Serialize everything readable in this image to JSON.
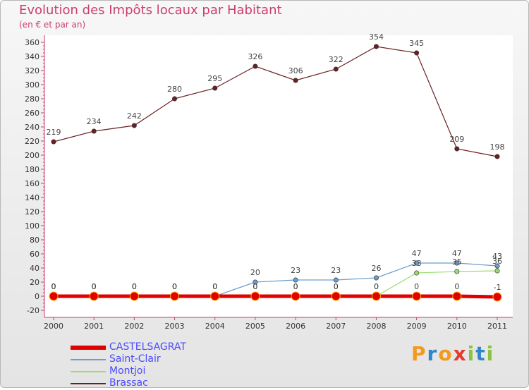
{
  "chart_data": {
    "type": "line",
    "title": "Evolution des Impôts locaux par Habitant",
    "subtitle": "(en € et par an)",
    "xlabel": "",
    "ylabel": "",
    "ylim": [
      -20,
      360
    ],
    "ytick_step": 20,
    "yticks": [
      "360",
      "340",
      "320",
      "300",
      "280",
      "260",
      "240",
      "220",
      "200",
      "180",
      "160",
      "140",
      "120",
      "100",
      "80",
      "60",
      "40",
      "20",
      "0",
      "-20"
    ],
    "categories": [
      "2000",
      "2001",
      "2002",
      "2003",
      "2004",
      "2005",
      "2006",
      "2007",
      "2008",
      "2009",
      "2010",
      "2011"
    ],
    "series": [
      {
        "name": "Brassac",
        "color": "#6b1f22",
        "values": [
          219,
          234,
          242,
          280,
          295,
          326,
          306,
          322,
          354,
          345,
          209,
          198
        ],
        "labels": [
          "219",
          "234",
          "242",
          "280",
          "295",
          "326",
          "306",
          "322",
          "354",
          "345",
          "209",
          "198"
        ]
      },
      {
        "name": "Saint-Clair",
        "color": "#6b9dcc",
        "values": [
          0,
          0,
          0,
          0,
          0,
          20,
          23,
          23,
          26,
          47,
          47,
          43
        ],
        "labels": [
          "0",
          "0",
          "0",
          "0",
          "0",
          "20",
          "23",
          "23",
          "26",
          "47",
          "47",
          "43"
        ]
      },
      {
        "name": "Montjoi",
        "color": "#9bdc6e",
        "values": [
          0,
          0,
          0,
          0,
          0,
          0,
          0,
          0,
          0,
          33,
          35,
          36
        ],
        "labels": [
          "0",
          "0",
          "0",
          "0",
          "0",
          "0",
          "0",
          "0",
          "0",
          "33",
          "35",
          "36"
        ]
      },
      {
        "name": "CASTELSAGRAT",
        "color": "#e00000",
        "values": [
          0,
          0,
          0,
          0,
          0,
          0,
          0,
          0,
          0,
          0,
          0,
          -1
        ],
        "labels": [
          "0",
          "0",
          "0",
          "0",
          "0",
          "0",
          "0",
          "0",
          "0",
          "0",
          "0",
          "-1"
        ]
      }
    ],
    "legend": [
      "CASTELSAGRAT",
      "Saint-Clair",
      "Montjoi",
      "Brassac"
    ],
    "legend_position": "bottom-left",
    "grid": false
  },
  "logo": {
    "letters": [
      "P",
      "r",
      "o",
      "x",
      "i",
      "t",
      "i"
    ],
    "colors": [
      "#f39a1e",
      "#2f86c8",
      "#f39a1e",
      "#e33b2f",
      "#8cc43f",
      "#2f86c8",
      "#8cc43f"
    ]
  }
}
